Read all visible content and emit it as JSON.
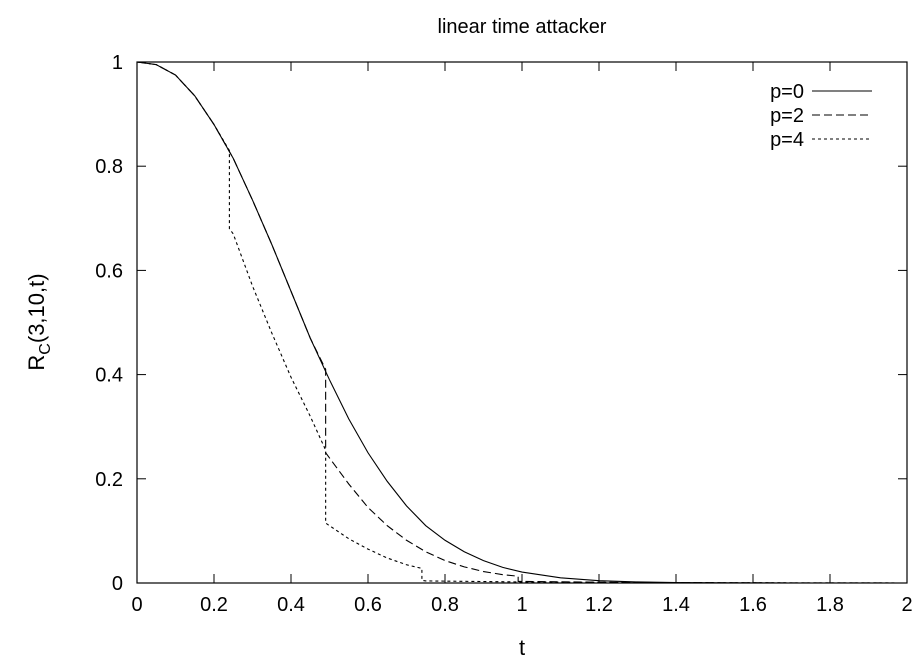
{
  "chart_data": {
    "type": "line",
    "title": "linear time attacker",
    "xlabel": "t",
    "ylabel_main": "R",
    "ylabel_sub": "C",
    "ylabel_rest": "(3,10,t)",
    "xlim": [
      0,
      2
    ],
    "ylim": [
      0,
      1
    ],
    "x_ticks": [
      "0",
      "0.2",
      "0.4",
      "0.6",
      "0.8",
      "1",
      "1.2",
      "1.4",
      "1.6",
      "1.8",
      "2"
    ],
    "y_ticks": [
      "0",
      "0.2",
      "0.4",
      "0.6",
      "0.8",
      "1"
    ],
    "grid": false,
    "legend_position": "top-right",
    "series": [
      {
        "name": "p=0",
        "style": "solid",
        "x": [
          0,
          0.05,
          0.1,
          0.15,
          0.2,
          0.25,
          0.3,
          0.35,
          0.4,
          0.45,
          0.5,
          0.55,
          0.6,
          0.65,
          0.7,
          0.75,
          0.8,
          0.85,
          0.9,
          0.95,
          1.0,
          1.1,
          1.2,
          1.3,
          1.4,
          1.5,
          1.6,
          1.7,
          1.8,
          1.9,
          2.0
        ],
        "y": [
          1.0,
          0.995,
          0.975,
          0.935,
          0.88,
          0.815,
          0.735,
          0.65,
          0.56,
          0.47,
          0.39,
          0.315,
          0.25,
          0.195,
          0.148,
          0.11,
          0.082,
          0.06,
          0.043,
          0.03,
          0.021,
          0.01,
          0.0045,
          0.002,
          0.0008,
          0.0003,
          0.0001,
          0.0,
          0.0,
          0.0,
          0.0
        ]
      },
      {
        "name": "p=2",
        "style": "dashed",
        "x": [
          0,
          0.05,
          0.1,
          0.15,
          0.2,
          0.25,
          0.3,
          0.35,
          0.4,
          0.45,
          0.49,
          0.49,
          0.5,
          0.55,
          0.6,
          0.65,
          0.7,
          0.75,
          0.8,
          0.85,
          0.9,
          0.95,
          0.99,
          0.99,
          1.0,
          1.2,
          1.4,
          1.6,
          1.8,
          2.0
        ],
        "y": [
          1.0,
          0.995,
          0.975,
          0.935,
          0.88,
          0.815,
          0.735,
          0.65,
          0.56,
          0.47,
          0.41,
          0.25,
          0.24,
          0.19,
          0.145,
          0.11,
          0.082,
          0.06,
          0.043,
          0.031,
          0.022,
          0.016,
          0.013,
          0.003,
          0.003,
          0.0015,
          0.0007,
          0.0003,
          0.0001,
          0.0
        ]
      },
      {
        "name": "p=4",
        "style": "dotted",
        "x": [
          0,
          0.05,
          0.1,
          0.15,
          0.2,
          0.24,
          0.24,
          0.25,
          0.3,
          0.35,
          0.4,
          0.45,
          0.49,
          0.49,
          0.5,
          0.55,
          0.6,
          0.65,
          0.7,
          0.74,
          0.74,
          0.75,
          1.0,
          1.25,
          1.5,
          1.75,
          2.0
        ],
        "y": [
          1.0,
          0.995,
          0.975,
          0.935,
          0.88,
          0.83,
          0.68,
          0.67,
          0.57,
          0.48,
          0.395,
          0.32,
          0.255,
          0.115,
          0.11,
          0.085,
          0.065,
          0.048,
          0.035,
          0.028,
          0.005,
          0.004,
          0.002,
          0.001,
          0.0005,
          0.0002,
          0.0
        ]
      }
    ]
  }
}
